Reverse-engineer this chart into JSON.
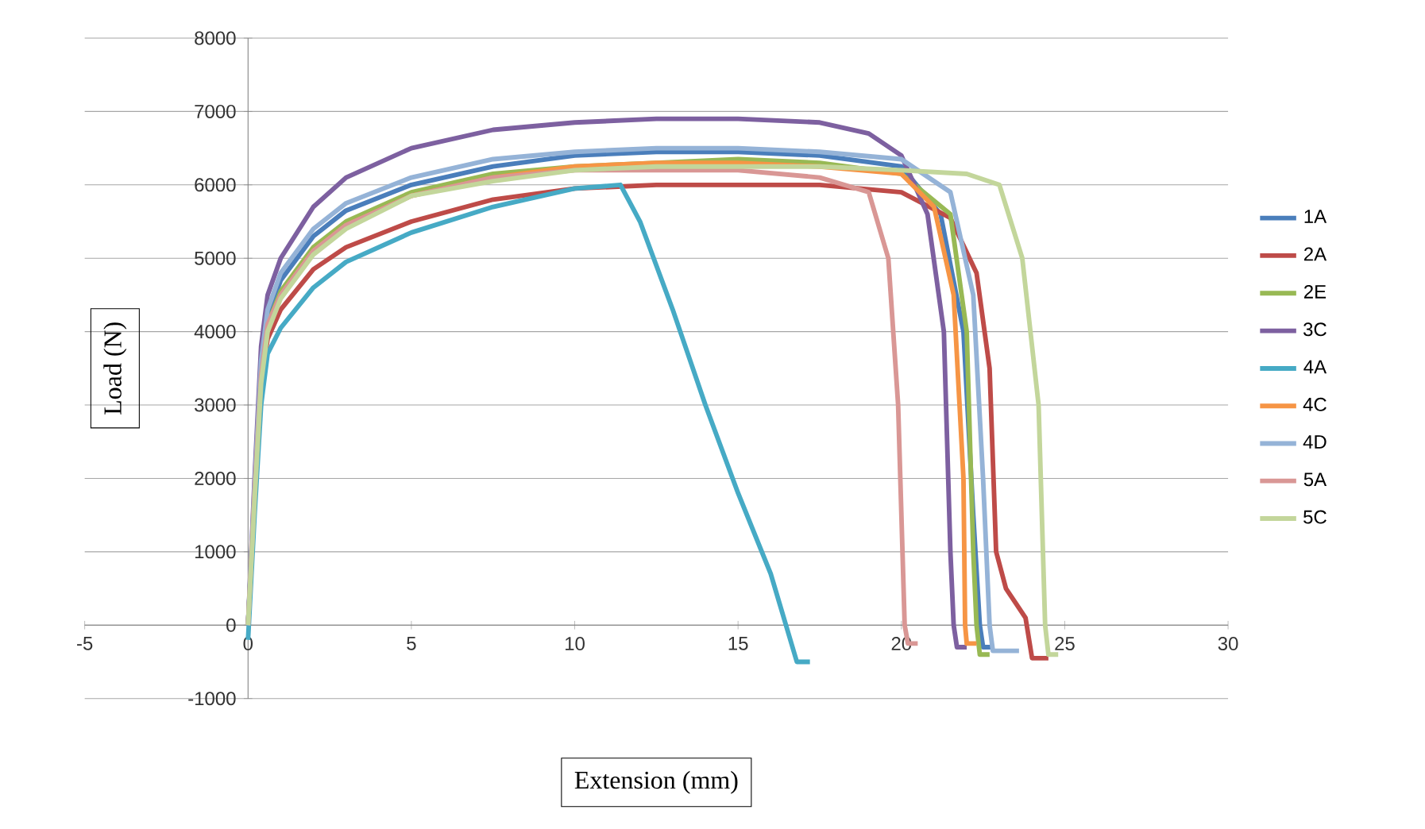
{
  "chart_data": {
    "type": "line",
    "xlabel": "Extension (mm)",
    "ylabel": "Load (N)",
    "xlim": [
      -5,
      30
    ],
    "xticks": [
      -5,
      0,
      5,
      10,
      15,
      20,
      25,
      30
    ],
    "ylim": [
      -1000,
      8000
    ],
    "yticks": [
      -1000,
      0,
      1000,
      2000,
      3000,
      4000,
      5000,
      6000,
      7000,
      8000
    ],
    "grid": "y",
    "legend": "right",
    "marker": "none",
    "line_style": "solid",
    "series": [
      {
        "name": "1A",
        "color": "#4a7ebb",
        "x": [
          0,
          0.2,
          0.4,
          0.6,
          1,
          2,
          3,
          5,
          7.5,
          10,
          12.5,
          15,
          17.5,
          20,
          21.2,
          21.9,
          22.2,
          22.4,
          22.5,
          22.8
        ],
        "values": [
          0,
          1800,
          3500,
          4200,
          4700,
          5300,
          5650,
          6000,
          6250,
          6400,
          6450,
          6450,
          6400,
          6250,
          5600,
          4000,
          1500,
          0,
          -300,
          -300
        ]
      },
      {
        "name": "2A",
        "color": "#be4b48",
        "x": [
          0,
          0.2,
          0.4,
          0.6,
          1,
          2,
          3,
          5,
          7.5,
          10,
          12.5,
          15,
          17.5,
          20,
          21.5,
          22.3,
          22.7,
          22.9,
          23.2,
          23.8,
          24.0,
          24.5
        ],
        "values": [
          0,
          1700,
          3300,
          3900,
          4300,
          4850,
          5150,
          5500,
          5800,
          5950,
          6000,
          6000,
          6000,
          5900,
          5550,
          4800,
          3500,
          1000,
          500,
          100,
          -450,
          -450
        ]
      },
      {
        "name": "2E",
        "color": "#98b954",
        "x": [
          0,
          0.2,
          0.4,
          0.6,
          1,
          2,
          3,
          5,
          7.5,
          10,
          12.5,
          15,
          17.5,
          20,
          21.5,
          22.0,
          22.2,
          22.3,
          22.4,
          22.7
        ],
        "values": [
          0,
          1800,
          3400,
          4100,
          4550,
          5150,
          5500,
          5900,
          6150,
          6250,
          6300,
          6350,
          6300,
          6150,
          5600,
          4000,
          1000,
          0,
          -400,
          -400
        ]
      },
      {
        "name": "3C",
        "color": "#7d60a0",
        "x": [
          0,
          0.2,
          0.4,
          0.6,
          1,
          2,
          3,
          5,
          7.5,
          10,
          12.5,
          15,
          17.5,
          19,
          20,
          20.8,
          21.3,
          21.5,
          21.6,
          21.7,
          22
        ],
        "values": [
          0,
          2000,
          3800,
          4500,
          5000,
          5700,
          6100,
          6500,
          6750,
          6850,
          6900,
          6900,
          6850,
          6700,
          6400,
          5600,
          4000,
          1000,
          0,
          -300,
          -300
        ]
      },
      {
        "name": "4A",
        "color": "#46aac5",
        "x": [
          0,
          0.2,
          0.4,
          0.6,
          1,
          2,
          3,
          5,
          7.5,
          10,
          11.4,
          12,
          13,
          14,
          15,
          16,
          16.8,
          17.2
        ],
        "values": [
          -200,
          1500,
          3000,
          3700,
          4050,
          4600,
          4950,
          5350,
          5700,
          5950,
          6000,
          5500,
          4300,
          3000,
          1800,
          700,
          -500,
          -500
        ]
      },
      {
        "name": "4C",
        "color": "#f69545",
        "x": [
          0.4,
          0.6,
          1,
          2,
          3,
          5,
          7.5,
          10,
          12.5,
          15,
          17.5,
          20,
          21.0,
          21.6,
          21.9,
          21.95,
          22.0,
          22.3
        ],
        "values": [
          3400,
          4100,
          4500,
          5100,
          5450,
          5850,
          6100,
          6250,
          6300,
          6300,
          6250,
          6150,
          5700,
          4500,
          2000,
          0,
          -250,
          -250
        ]
      },
      {
        "name": "4D",
        "color": "#95b3d7",
        "x": [
          0,
          0.2,
          0.4,
          0.6,
          1,
          2,
          3,
          5,
          7.5,
          10,
          12.5,
          15,
          17.5,
          20,
          21.5,
          22.2,
          22.5,
          22.7,
          22.8,
          23.6
        ],
        "values": [
          0,
          1900,
          3600,
          4300,
          4800,
          5400,
          5750,
          6100,
          6350,
          6450,
          6500,
          6500,
          6450,
          6350,
          5900,
          4500,
          2000,
          0,
          -350,
          -350
        ]
      },
      {
        "name": "5A",
        "color": "#d99795",
        "x": [
          0,
          0.2,
          0.4,
          0.6,
          1,
          2,
          3,
          5,
          7.5,
          10,
          12.5,
          15,
          17.5,
          19.0,
          19.6,
          19.9,
          20.1,
          20.2,
          20.5
        ],
        "values": [
          0,
          1800,
          3400,
          4100,
          4500,
          5100,
          5450,
          5850,
          6100,
          6200,
          6200,
          6200,
          6100,
          5900,
          5000,
          3000,
          0,
          -250,
          -250
        ]
      },
      {
        "name": "5C",
        "color": "#c3d69b",
        "x": [
          0,
          0.2,
          0.4,
          0.6,
          1,
          2,
          3,
          5,
          7.5,
          10,
          12.5,
          15,
          17.5,
          20,
          22,
          23,
          23.7,
          24.2,
          24.4,
          24.5,
          24.8
        ],
        "values": [
          0,
          1700,
          3300,
          4000,
          4450,
          5050,
          5400,
          5850,
          6050,
          6200,
          6250,
          6250,
          6250,
          6200,
          6150,
          6000,
          5000,
          3000,
          0,
          -400,
          -400
        ]
      }
    ]
  }
}
